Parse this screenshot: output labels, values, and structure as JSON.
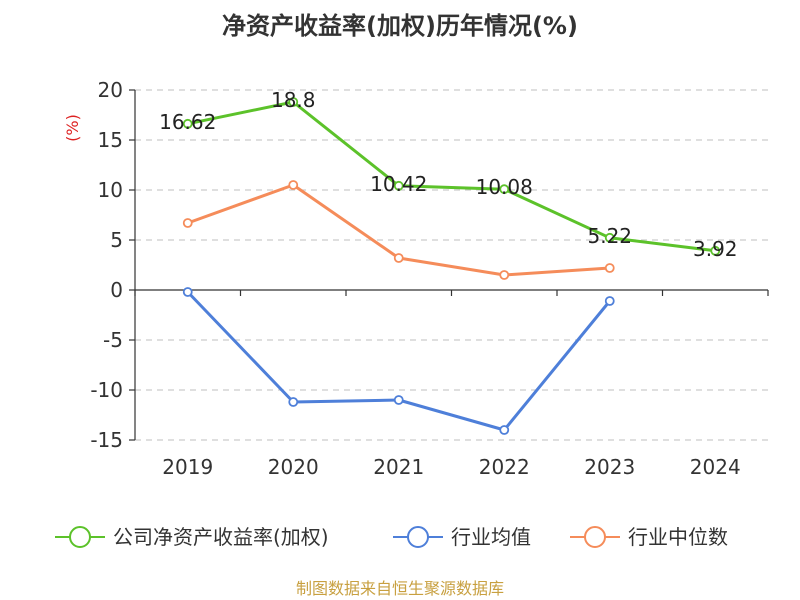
{
  "chart_data": {
    "type": "line",
    "title": "净资产收益率(加权)历年情况(%)",
    "ylabel": "(%)",
    "xlabel": "",
    "categories": [
      "2019",
      "2020",
      "2021",
      "2022",
      "2023",
      "2024"
    ],
    "ylim": [
      -15,
      20
    ],
    "yticks": [
      20,
      15,
      10,
      5,
      0,
      -5,
      -10,
      -15
    ],
    "grid": true,
    "legend_position": "bottom",
    "series": [
      {
        "name": "公司净资产收益率(加权)",
        "color": "#5cc22a",
        "values": [
          16.62,
          18.8,
          10.42,
          10.08,
          5.22,
          3.92
        ],
        "labels": [
          "16.62",
          "18.8",
          "10.42",
          "10.08",
          "5.22",
          "3.92"
        ]
      },
      {
        "name": "行业均值",
        "color": "#4e7fd9",
        "values": [
          -0.2,
          -11.2,
          -11.0,
          -14.0,
          -1.1,
          null
        ],
        "labels": null
      },
      {
        "name": "行业中位数",
        "color": "#f58c5a",
        "values": [
          6.7,
          10.5,
          3.2,
          1.5,
          2.2,
          null
        ],
        "labels": null
      }
    ]
  },
  "source": "制图数据来自恒生聚源数据库"
}
